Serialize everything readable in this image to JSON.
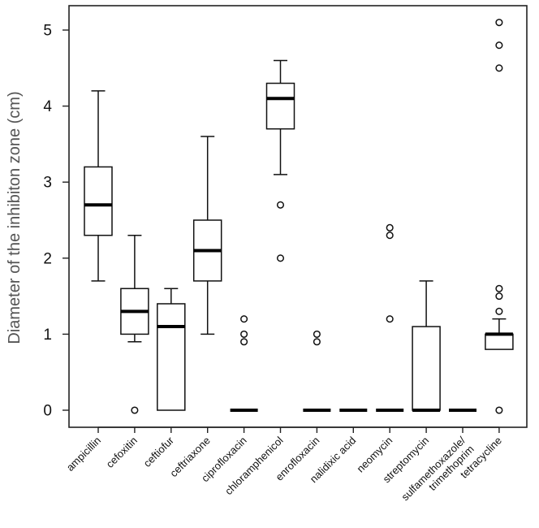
{
  "chart_data": {
    "type": "boxplot",
    "title": "",
    "xlabel": "",
    "ylabel": "Diameter of the inhibiton zone (cm)",
    "ylim": [
      -0.3,
      5.3
    ],
    "yticks": [
      0,
      1,
      2,
      3,
      4,
      5
    ],
    "ytick_labels": [
      "0",
      "1",
      "2",
      "3",
      "4",
      "5"
    ],
    "categories": [
      "ampicillin",
      "cefoxitin",
      "ceftiofur",
      "ceftriaxone",
      "ciprofloxacin",
      "chloramphenicol",
      "enrofloxacin",
      "nalidixic acid",
      "neomycin",
      "streptomycin",
      "sulfamethoxazole/trimethoprim",
      "tetracycline"
    ],
    "category_label_lines": [
      [
        "ampicillin"
      ],
      [
        "cefoxitin"
      ],
      [
        "ceftiofur"
      ],
      [
        "ceftriaxone"
      ],
      [
        "ciprofloxacin"
      ],
      [
        "chloramphenicol"
      ],
      [
        "enrofloxacin"
      ],
      [
        "nalidixic acid"
      ],
      [
        "neomycin"
      ],
      [
        "streptomycin"
      ],
      [
        "sulfamethoxazole/",
        "trimethoprim"
      ],
      [
        "tetracycline"
      ]
    ],
    "boxes": [
      {
        "name": "ampicillin",
        "whisker_low": 1.7,
        "q1": 2.3,
        "median": 2.7,
        "q3": 3.2,
        "whisker_high": 4.2,
        "outliers": []
      },
      {
        "name": "cefoxitin",
        "whisker_low": 0.9,
        "q1": 1.0,
        "median": 1.3,
        "q3": 1.6,
        "whisker_high": 2.3,
        "outliers": [
          0
        ]
      },
      {
        "name": "ceftiofur",
        "whisker_low": 0,
        "q1": 0,
        "median": 1.1,
        "q3": 1.4,
        "whisker_high": 1.6,
        "outliers": []
      },
      {
        "name": "ceftriaxone",
        "whisker_low": 1.0,
        "q1": 1.7,
        "median": 2.1,
        "q3": 2.5,
        "whisker_high": 3.6,
        "outliers": []
      },
      {
        "name": "ciprofloxacin",
        "whisker_low": 0,
        "q1": 0,
        "median": 0,
        "q3": 0,
        "whisker_high": 0,
        "outliers": [
          0.9,
          1.0,
          1.2
        ]
      },
      {
        "name": "chloramphenicol",
        "whisker_low": 3.1,
        "q1": 3.7,
        "median": 4.1,
        "q3": 4.3,
        "whisker_high": 4.6,
        "outliers": [
          2.0,
          2.7
        ]
      },
      {
        "name": "enrofloxacin",
        "whisker_low": 0,
        "q1": 0,
        "median": 0,
        "q3": 0,
        "whisker_high": 0,
        "outliers": [
          0.9,
          1.0
        ]
      },
      {
        "name": "nalidixic acid",
        "whisker_low": 0,
        "q1": 0,
        "median": 0,
        "q3": 0,
        "whisker_high": 0,
        "outliers": []
      },
      {
        "name": "neomycin",
        "whisker_low": 0,
        "q1": 0,
        "median": 0,
        "q3": 0,
        "whisker_high": 0,
        "outliers": [
          1.2,
          2.3,
          2.4
        ]
      },
      {
        "name": "streptomycin",
        "whisker_low": 0,
        "q1": 0,
        "median": 0,
        "q3": 1.1,
        "whisker_high": 1.7,
        "outliers": []
      },
      {
        "name": "sulfamethoxazole/trimethoprim",
        "whisker_low": 0,
        "q1": 0,
        "median": 0,
        "q3": 0,
        "whisker_high": 0,
        "outliers": []
      },
      {
        "name": "tetracycline",
        "whisker_low": 0.8,
        "q1": 0.8,
        "median": 1.0,
        "q3": 1.0,
        "whisker_high": 1.2,
        "outliers": [
          0,
          1.3,
          1.5,
          1.6,
          4.5,
          4.8,
          5.1
        ]
      }
    ]
  }
}
